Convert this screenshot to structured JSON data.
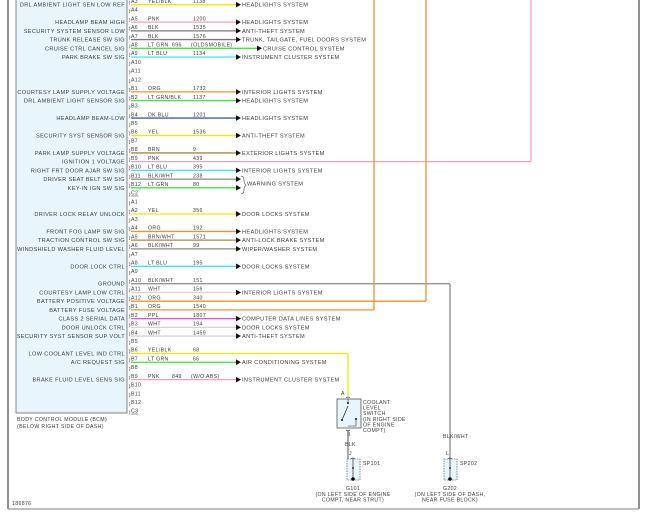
{
  "module": {
    "caption_line1": "BODY CONTROL MODULE (BCM)",
    "caption_line2": "(BELOW RIGHT SIDE OF DASH)"
  },
  "diagram_id": "186876",
  "wire_colors": {
    "YEL": "#ecec00",
    "YEL/BLK": "#ecec00",
    "PNK": "#f5a0b4",
    "BLK": "#7a7a7a",
    "LT GRN": "#3ee83e",
    "LT GRN/BLK": "#3ee83e",
    "LT BLU": "#3ee8f0",
    "ORG": "#f5902a",
    "DK BLU": "#4a5aa8",
    "BRN": "#a88848",
    "BRN/WHT": "#a88848",
    "BLK/WHT": "#8a8a8a",
    "WHT": "#d4d4d4",
    "PPL": "#f048f0"
  },
  "rows": [
    {
      "pin": "A3",
      "signal": "DRL AMBIENT LIGHT SEN LOW REF",
      "wire": "YEL/BLK",
      "circuit": "1138",
      "dest": "HEADLIGHTS SYSTEM"
    },
    {
      "pin": "A4"
    },
    {
      "pin": "A5",
      "signal": "HEADLAMP BEAM HIGH",
      "wire": "PNK",
      "circuit": "1200",
      "dest": "HEADLIGHTS SYSTEM"
    },
    {
      "pin": "A6",
      "signal": "SECURITY SYSTEM SENSOR LOW",
      "wire": "BLK",
      "circuit": "1535",
      "dest": "ANTI-THEFT SYSTEM"
    },
    {
      "pin": "A7",
      "signal": "TRUNK RELEASE SW SIG",
      "wire": "BLK",
      "circuit": "1576",
      "dest": "TRUNK, TAILGATE, FUEL DOORS SYSTEM"
    },
    {
      "pin": "A8",
      "signal": "CRUISE CTRL CANCEL SIG",
      "wire": "LT GRN",
      "circuit": "696",
      "note": "(OLDSMOBILE)",
      "dest": "CRUISE CONTROL SYSTEM"
    },
    {
      "pin": "A9",
      "signal": "PARK BRAKE SW SIG",
      "wire": "LT BLU",
      "circuit": "1134",
      "dest": "INSTRUMENT CLUSTER SYSTEM"
    },
    {
      "pin": "A10"
    },
    {
      "pin": "A11"
    },
    {
      "pin": "A12"
    },
    {
      "pin": "B1",
      "signal": "COURTESY LAMP SUPPLY VOLTAGE",
      "wire": "ORG",
      "circuit": "1732",
      "dest": "INTERIOR LIGHTS SYSTEM"
    },
    {
      "pin": "B2",
      "signal": "DRL AMBIENT LIGHT SENSOR SIG",
      "wire": "LT GRN/BLK",
      "circuit": "1137",
      "dest": "HEADLIGHTS SYSTEM"
    },
    {
      "pin": "B3"
    },
    {
      "pin": "B4",
      "signal": "HEADLAMP BEAM-LOW",
      "wire": "DK BLU",
      "circuit": "1201",
      "dest": "HEADLIGHTS SYSTEM"
    },
    {
      "pin": "B5"
    },
    {
      "pin": "B6",
      "signal": "SECURITY SYST SENSOR SIG",
      "wire": "YEL",
      "circuit": "1536",
      "dest": "ANTI-THEFT SYSTEM"
    },
    {
      "pin": "B7"
    },
    {
      "pin": "B8",
      "signal": "PARK LAMP SUPPLY VOLTAGE",
      "wire": "BRN",
      "circuit": "9",
      "dest": "EXTERIOR LIGHTS SYSTEM"
    },
    {
      "pin": "B9",
      "signal": "IGNITION 1 VOLTAGE",
      "wire": "PNK",
      "circuit": "439"
    },
    {
      "pin": "B10",
      "signal": "RIGHT FRT DOOR AJAR SW SIG",
      "wire": "LT BLU",
      "circuit": "395",
      "dest": "INTERIOR LIGHTS SYSTEM"
    },
    {
      "pin": "B11",
      "signal": "DRIVER SEAT BELT SW SIG",
      "wire": "BLK/WHT",
      "circuit": "238",
      "arrow_only": true
    },
    {
      "pin": "B12",
      "signal": "KEY-IN IGN SW SIG",
      "wire": "LT GRN",
      "circuit": "80",
      "arrow_only": true
    },
    {
      "pin": "C2",
      "connector": true
    },
    {
      "pin": "A1"
    },
    {
      "pin": "A2",
      "signal": "DRIVER LOCK RELAY UNLOCK",
      "wire": "YEL",
      "circuit": "356",
      "dest": "DOOR LOCKS SYSTEM"
    },
    {
      "pin": "A3"
    },
    {
      "pin": "A4",
      "signal": "FRONT FOG LAMP SW SIG",
      "wire": "ORG",
      "circuit": "192",
      "dest": "HEADLIGHTS SYSTEM"
    },
    {
      "pin": "A5",
      "signal": "TRACTION CONTROL SW SIG",
      "wire": "BRN/WHT",
      "circuit": "1571",
      "dest": "ANTI-LOCK BRAKE SYSTEM"
    },
    {
      "pin": "A6",
      "signal": "WINDSHIELD WASHER FLUID LEVEL",
      "wire": "BLK/WHT",
      "circuit": "99",
      "dest": "WIPER/WASHER SYSTEM"
    },
    {
      "pin": "A7"
    },
    {
      "pin": "A8",
      "signal": "DOOR LOCK CTRL",
      "wire": "LT BLU",
      "circuit": "195",
      "dest": "DOOR LOCKS SYSTEM"
    },
    {
      "pin": "A9"
    },
    {
      "pin": "A10",
      "signal": "GROUND",
      "wire": "BLK/WHT",
      "circuit": "151"
    },
    {
      "pin": "A11",
      "signal": "COURTESY LAMP LOW CTRL",
      "wire": "WHT",
      "circuit": "156",
      "dest": "INTERIOR LIGHTS SYSTEM"
    },
    {
      "pin": "A12",
      "signal": "BATTERY POSITIVE VOLTAGE",
      "wire": "ORG",
      "circuit": "340"
    },
    {
      "pin": "B1",
      "signal": "BATTERY FUSE VOLTAGE",
      "wire": "ORG",
      "circuit": "1540"
    },
    {
      "pin": "B2",
      "signal": "CLASS 2 SERIAL DATA",
      "wire": "PPL",
      "circuit": "1807",
      "dest": "COMPUTER DATA LINES SYSTEM"
    },
    {
      "pin": "B3",
      "signal": "DOOR UNLOCK CTRL",
      "wire": "WHT",
      "circuit": "194",
      "dest": "DOOR LOCKS SYSTEM"
    },
    {
      "pin": "B4",
      "signal": "SECURITY SYST SENSOR SUP VOLT",
      "wire": "WHT",
      "circuit": "1459",
      "dest": "ANTI-THEFT SYSTEM"
    },
    {
      "pin": "B5"
    },
    {
      "pin": "B6",
      "signal": "LOW COOLANT LEVEL IND CTRL",
      "wire": "YEL/BLK",
      "circuit": "68"
    },
    {
      "pin": "B7",
      "signal": "A/C REQUEST SIG",
      "wire": "LT GRN",
      "circuit": "66",
      "dest": "AIR CONDITIONING SYSTEM"
    },
    {
      "pin": "B8"
    },
    {
      "pin": "B9",
      "signal": "BRAKE FLUID LEVEL SENS SIG",
      "wire": "PNK",
      "circuit": "849",
      "note": "(W/O ABS)",
      "dest": "INSTRUMENT CLUSTER SYSTEM"
    },
    {
      "pin": "B10"
    },
    {
      "pin": "B11"
    },
    {
      "pin": "B12"
    },
    {
      "pin": "C3",
      "connector": true
    }
  ],
  "warning_group": {
    "dest": "WARNING SYSTEM"
  },
  "coolant_switch": {
    "pin_a": "A",
    "pin_b": "B",
    "label": [
      "COOLANT",
      "LEVEL",
      "SWITCH",
      "(IN RIGHT SIDE",
      "OF ENGINE",
      "COMPT)"
    ],
    "ground_wire": "BLK",
    "splice_pin": "J",
    "splice": "SP101",
    "ground": "G101",
    "ground_location": [
      "(ON LEFT SIDE OF ENGINE",
      "COMPT, NEAR STRUT)"
    ]
  },
  "ground_g202": {
    "wire": "BLK/WHT",
    "splice_pin": "L",
    "splice": "SP202",
    "ground": "G202",
    "ground_location": [
      "(ON LEFT SIDE OF DASH,",
      "NEAR FUSE BLOCK)"
    ]
  }
}
